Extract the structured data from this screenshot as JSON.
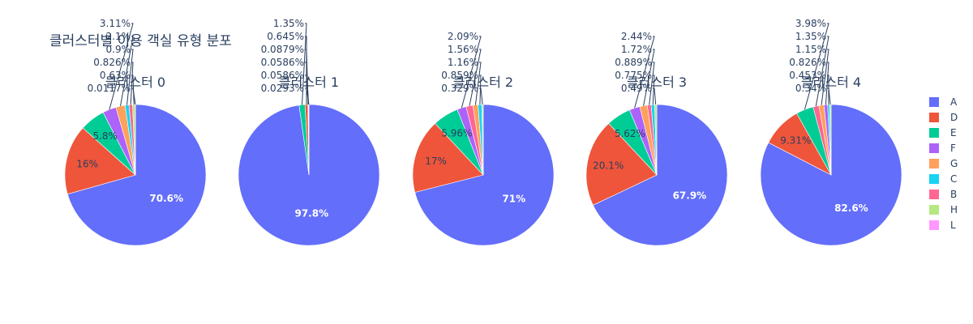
{
  "chart_data": {
    "type": "pie",
    "title": "클러스터별 이용 객실 유형 분포",
    "legend": {
      "placement": "right",
      "items": [
        {
          "name": "A",
          "color": "#636efa"
        },
        {
          "name": "D",
          "color": "#EF553B"
        },
        {
          "name": "E",
          "color": "#00cc96"
        },
        {
          "name": "F",
          "color": "#ab63fa"
        },
        {
          "name": "G",
          "color": "#FFA15A"
        },
        {
          "name": "C",
          "color": "#19d3f3"
        },
        {
          "name": "B",
          "color": "#FF6692"
        },
        {
          "name": "H",
          "color": "#B6E880"
        },
        {
          "name": "L",
          "color": "#FF97FF"
        }
      ]
    },
    "pies": [
      {
        "title": "클러스터 0",
        "slices": [
          {
            "label": "A",
            "value": 70.6,
            "text": "70.6%"
          },
          {
            "label": "D",
            "value": 16.0,
            "text": "16%"
          },
          {
            "label": "E",
            "value": 5.8,
            "text": "5.8%"
          },
          {
            "label": "F",
            "value": 3.11,
            "text": "3.11%"
          },
          {
            "label": "G",
            "value": 2.1,
            "text": "2.1%"
          },
          {
            "label": "C",
            "value": 0.9,
            "text": "0.9%"
          },
          {
            "label": "B",
            "value": 0.826,
            "text": "0.826%"
          },
          {
            "label": "H",
            "value": 0.63,
            "text": "0.63%"
          },
          {
            "label": "L",
            "value": 0.0117,
            "text": "0.0117%"
          }
        ]
      },
      {
        "title": "클러스터 1",
        "slices": [
          {
            "label": "A",
            "value": 97.8,
            "text": "97.8%"
          },
          {
            "label": "E",
            "value": 1.35,
            "text": "1.35%"
          },
          {
            "label": "D",
            "value": 0.645,
            "text": "0.645%"
          },
          {
            "label": "B",
            "value": 0.0879,
            "text": "0.0879%"
          },
          {
            "label": "C",
            "value": 0.0586,
            "text": "0.0586%"
          },
          {
            "label": "F",
            "value": 0.0586,
            "text": "0.0586%"
          },
          {
            "label": "G",
            "value": 0.0293,
            "text": "0.0293%"
          }
        ]
      },
      {
        "title": "클러스터 2",
        "slices": [
          {
            "label": "A",
            "value": 71.0,
            "text": "71%"
          },
          {
            "label": "D",
            "value": 17.0,
            "text": "17%"
          },
          {
            "label": "E",
            "value": 5.96,
            "text": "5.96%"
          },
          {
            "label": "F",
            "value": 2.09,
            "text": "2.09%"
          },
          {
            "label": "B",
            "value": 1.56,
            "text": "1.56%"
          },
          {
            "label": "G",
            "value": 1.16,
            "text": "1.16%"
          },
          {
            "label": "C",
            "value": 0.859,
            "text": "0.859%"
          },
          {
            "label": "H",
            "value": 0.329,
            "text": "0.329%"
          }
        ]
      },
      {
        "title": "클러스터 3",
        "slices": [
          {
            "label": "A",
            "value": 67.9,
            "text": "67.9%"
          },
          {
            "label": "D",
            "value": 20.1,
            "text": "20.1%"
          },
          {
            "label": "E",
            "value": 5.62,
            "text": "5.62%"
          },
          {
            "label": "F",
            "value": 2.44,
            "text": "2.44%"
          },
          {
            "label": "G",
            "value": 1.72,
            "text": "1.72%"
          },
          {
            "label": "B",
            "value": 0.889,
            "text": "0.889%"
          },
          {
            "label": "C",
            "value": 0.775,
            "text": "0.775%"
          },
          {
            "label": "H",
            "value": 0.49,
            "text": "0.49%"
          }
        ]
      },
      {
        "title": "클러스터 4",
        "slices": [
          {
            "label": "A",
            "value": 82.6,
            "text": "82.6%"
          },
          {
            "label": "D",
            "value": 9.31,
            "text": "9.31%"
          },
          {
            "label": "E",
            "value": 3.98,
            "text": "3.98%"
          },
          {
            "label": "B",
            "value": 1.35,
            "text": "1.35%"
          },
          {
            "label": "G",
            "value": 1.15,
            "text": "1.15%"
          },
          {
            "label": "F",
            "value": 0.826,
            "text": "0.826%"
          },
          {
            "label": "C",
            "value": 0.453,
            "text": "0.453%"
          },
          {
            "label": "H",
            "value": 0.34,
            "text": "0.34%"
          }
        ]
      }
    ]
  }
}
